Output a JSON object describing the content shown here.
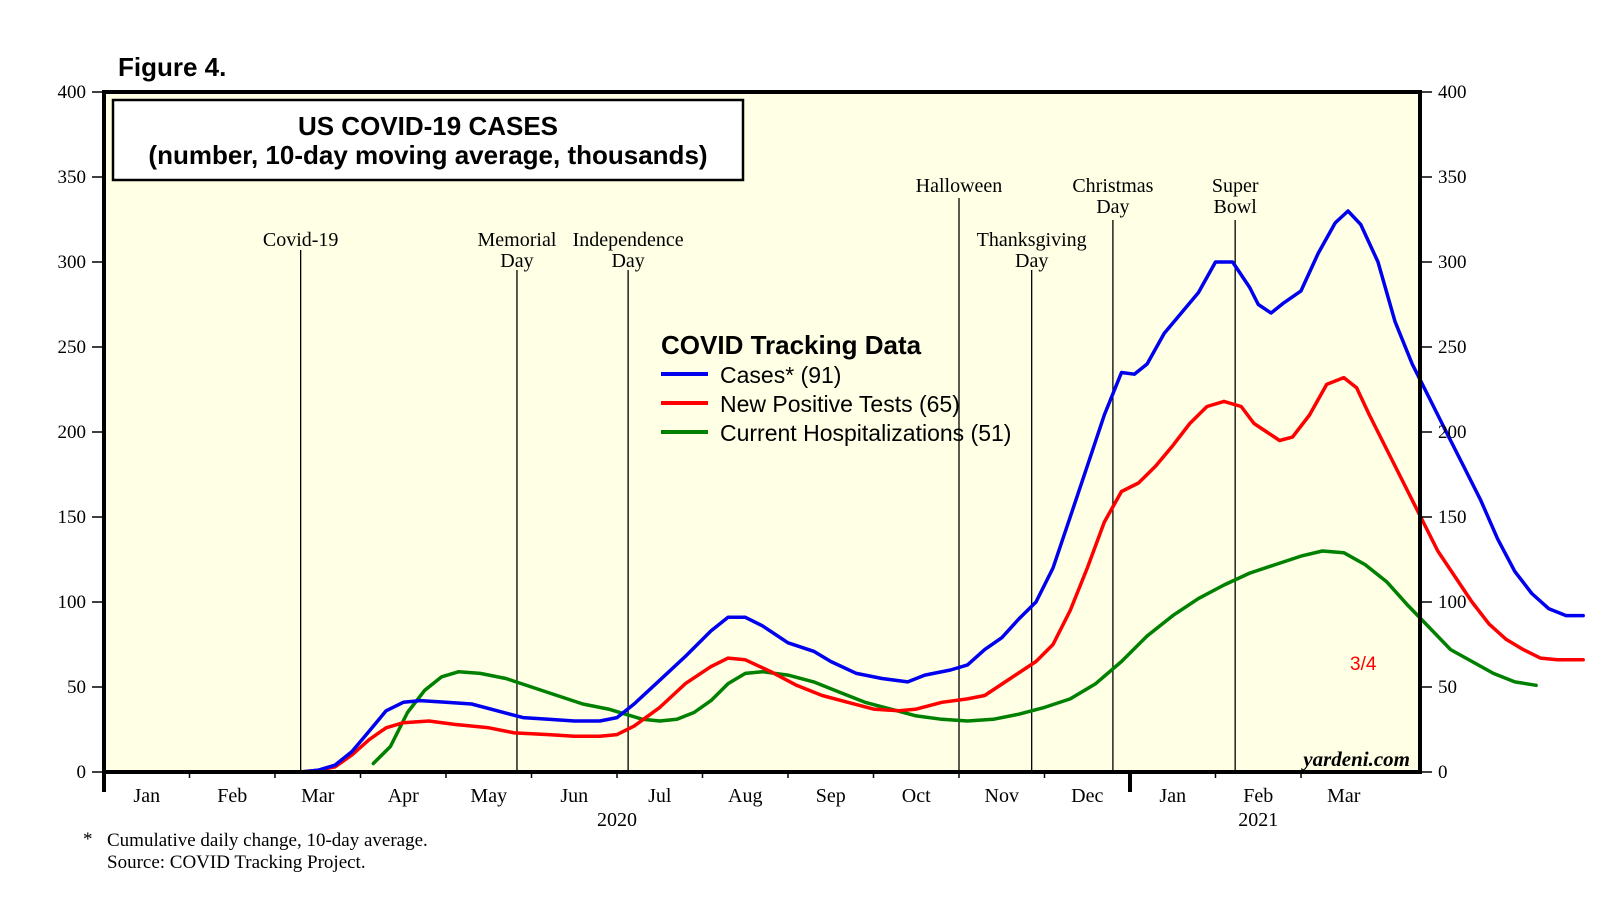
{
  "figure_label": "Figure 4.",
  "chart_data": {
    "type": "line",
    "title_line1": "US COVID-19 CASES",
    "title_line2": "(number, 10-day moving average, thousands)",
    "legend_title": "COVID Tracking Data",
    "ylim": [
      0,
      400
    ],
    "y_ticks": [
      0,
      50,
      100,
      150,
      200,
      250,
      300,
      350,
      400
    ],
    "month_labels": [
      "Jan",
      "Feb",
      "Mar",
      "Apr",
      "May",
      "Jun",
      "Jul",
      "Aug",
      "Sep",
      "Oct",
      "Nov",
      "Dec",
      "Jan",
      "Feb",
      "Mar"
    ],
    "year_labels": [
      {
        "text": "2020",
        "month": 6
      },
      {
        "text": "2021",
        "month": 13.5
      }
    ],
    "events": [
      {
        "line1": "Covid-19",
        "line2": "",
        "month": 2.3
      },
      {
        "line1": "Memorial",
        "line2": "Day",
        "month": 4.83
      },
      {
        "line1": "Independence",
        "line2": "Day",
        "month": 6.13
      },
      {
        "line1": "Halloween",
        "line2": "",
        "month": 10.0
      },
      {
        "line1": "Thanksgiving",
        "line2": "Day",
        "month": 10.85
      },
      {
        "line1": "Christmas",
        "line2": "Day",
        "month": 11.8
      },
      {
        "line1": "Super",
        "line2": "Bowl",
        "month": 13.23
      }
    ],
    "end_label": "3/4",
    "watermark": "yardeni.com",
    "series": [
      {
        "name": "Cases* (91)",
        "color": "#0000ee",
        "points": [
          [
            0.9,
            0
          ],
          [
            2,
            0
          ],
          [
            2.3,
            0
          ],
          [
            2.5,
            1
          ],
          [
            2.7,
            4
          ],
          [
            2.9,
            12
          ],
          [
            3.1,
            24
          ],
          [
            3.3,
            36
          ],
          [
            3.5,
            41
          ],
          [
            3.7,
            42
          ],
          [
            4,
            41
          ],
          [
            4.3,
            40
          ],
          [
            4.6,
            36
          ],
          [
            4.9,
            32
          ],
          [
            5.2,
            31
          ],
          [
            5.5,
            30
          ],
          [
            5.8,
            30
          ],
          [
            6,
            32
          ],
          [
            6.2,
            40
          ],
          [
            6.5,
            54
          ],
          [
            6.8,
            68
          ],
          [
            7.1,
            83
          ],
          [
            7.3,
            91
          ],
          [
            7.5,
            91
          ],
          [
            7.7,
            86
          ],
          [
            8,
            76
          ],
          [
            8.3,
            71
          ],
          [
            8.5,
            65
          ],
          [
            8.8,
            58
          ],
          [
            9.1,
            55
          ],
          [
            9.4,
            53
          ],
          [
            9.6,
            57
          ],
          [
            9.9,
            60
          ],
          [
            10.1,
            63
          ],
          [
            10.3,
            72
          ],
          [
            10.5,
            79
          ],
          [
            10.7,
            90
          ],
          [
            10.9,
            100
          ],
          [
            11.1,
            120
          ],
          [
            11.3,
            150
          ],
          [
            11.5,
            180
          ],
          [
            11.7,
            210
          ],
          [
            11.9,
            235
          ],
          [
            12.05,
            234
          ],
          [
            12.2,
            240
          ],
          [
            12.4,
            258
          ],
          [
            12.6,
            270
          ],
          [
            12.8,
            282
          ],
          [
            13,
            300
          ],
          [
            13.2,
            300
          ],
          [
            13.4,
            285
          ],
          [
            13.5,
            275
          ],
          [
            13.65,
            270
          ],
          [
            13.8,
            276
          ],
          [
            14,
            283
          ],
          [
            14.2,
            305
          ],
          [
            14.4,
            323
          ],
          [
            14.55,
            330
          ],
          [
            14.7,
            322
          ],
          [
            14.9,
            300
          ],
          [
            15.1,
            265
          ],
          [
            15.3,
            240
          ],
          [
            15.5,
            220
          ],
          [
            15.7,
            200
          ],
          [
            15.9,
            180
          ],
          [
            16.1,
            160
          ],
          [
            16.3,
            137
          ],
          [
            16.5,
            118
          ],
          [
            16.7,
            105
          ],
          [
            16.9,
            96
          ],
          [
            17.1,
            92
          ],
          [
            17.3,
            92
          ]
        ]
      },
      {
        "name": "New Positive Tests (65)",
        "color": "#ff0000",
        "points": [
          [
            0.85,
            0
          ],
          [
            2,
            0
          ],
          [
            2.3,
            0
          ],
          [
            2.5,
            1
          ],
          [
            2.7,
            3
          ],
          [
            2.9,
            10
          ],
          [
            3.1,
            19
          ],
          [
            3.3,
            26
          ],
          [
            3.5,
            29
          ],
          [
            3.8,
            30
          ],
          [
            4.1,
            28
          ],
          [
            4.5,
            26
          ],
          [
            4.8,
            23
          ],
          [
            5.2,
            22
          ],
          [
            5.5,
            21
          ],
          [
            5.8,
            21
          ],
          [
            6,
            22
          ],
          [
            6.2,
            27
          ],
          [
            6.5,
            38
          ],
          [
            6.8,
            52
          ],
          [
            7.1,
            62
          ],
          [
            7.3,
            67
          ],
          [
            7.5,
            66
          ],
          [
            7.8,
            59
          ],
          [
            8.1,
            51
          ],
          [
            8.4,
            45
          ],
          [
            8.7,
            41
          ],
          [
            9,
            37
          ],
          [
            9.3,
            36
          ],
          [
            9.5,
            37
          ],
          [
            9.8,
            41
          ],
          [
            10.1,
            43
          ],
          [
            10.3,
            45
          ],
          [
            10.6,
            55
          ],
          [
            10.9,
            65
          ],
          [
            11.1,
            75
          ],
          [
            11.3,
            95
          ],
          [
            11.5,
            120
          ],
          [
            11.7,
            147
          ],
          [
            11.9,
            165
          ],
          [
            12.1,
            170
          ],
          [
            12.3,
            180
          ],
          [
            12.5,
            192
          ],
          [
            12.7,
            205
          ],
          [
            12.9,
            215
          ],
          [
            13.1,
            218
          ],
          [
            13.3,
            215
          ],
          [
            13.45,
            205
          ],
          [
            13.6,
            200
          ],
          [
            13.75,
            195
          ],
          [
            13.9,
            197
          ],
          [
            14.1,
            210
          ],
          [
            14.3,
            228
          ],
          [
            14.5,
            232
          ],
          [
            14.65,
            226
          ],
          [
            14.8,
            210
          ],
          [
            15,
            190
          ],
          [
            15.2,
            170
          ],
          [
            15.4,
            150
          ],
          [
            15.6,
            130
          ],
          [
            15.8,
            115
          ],
          [
            16,
            100
          ],
          [
            16.2,
            87
          ],
          [
            16.4,
            78
          ],
          [
            16.6,
            72
          ],
          [
            16.8,
            67
          ],
          [
            17,
            66
          ],
          [
            17.3,
            66
          ]
        ]
      },
      {
        "name": "Current Hospitalizations (51)",
        "color": "#008000",
        "points": [
          [
            3.15,
            5
          ],
          [
            3.35,
            15
          ],
          [
            3.55,
            35
          ],
          [
            3.75,
            48
          ],
          [
            3.95,
            56
          ],
          [
            4.15,
            59
          ],
          [
            4.4,
            58
          ],
          [
            4.7,
            55
          ],
          [
            5,
            50
          ],
          [
            5.3,
            45
          ],
          [
            5.6,
            40
          ],
          [
            5.9,
            37
          ],
          [
            6.1,
            34
          ],
          [
            6.3,
            31
          ],
          [
            6.5,
            30
          ],
          [
            6.7,
            31
          ],
          [
            6.9,
            35
          ],
          [
            7.1,
            42
          ],
          [
            7.3,
            52
          ],
          [
            7.5,
            58
          ],
          [
            7.7,
            59
          ],
          [
            8,
            57
          ],
          [
            8.3,
            53
          ],
          [
            8.6,
            47
          ],
          [
            8.9,
            41
          ],
          [
            9.2,
            37
          ],
          [
            9.5,
            33
          ],
          [
            9.8,
            31
          ],
          [
            10.1,
            30
          ],
          [
            10.4,
            31
          ],
          [
            10.7,
            34
          ],
          [
            11,
            38
          ],
          [
            11.3,
            43
          ],
          [
            11.6,
            52
          ],
          [
            11.9,
            65
          ],
          [
            12.2,
            80
          ],
          [
            12.5,
            92
          ],
          [
            12.8,
            102
          ],
          [
            13.1,
            110
          ],
          [
            13.4,
            117
          ],
          [
            13.7,
            122
          ],
          [
            14,
            127
          ],
          [
            14.25,
            130
          ],
          [
            14.5,
            129
          ],
          [
            14.75,
            122
          ],
          [
            15,
            112
          ],
          [
            15.25,
            98
          ],
          [
            15.5,
            85
          ],
          [
            15.75,
            72
          ],
          [
            16,
            65
          ],
          [
            16.25,
            58
          ],
          [
            16.5,
            53
          ],
          [
            16.75,
            51
          ]
        ]
      }
    ],
    "footnote_marker": "*",
    "footnote_line1": "Cumulative daily change, 10-day average.",
    "footnote_line2": "Source: COVID Tracking Project."
  }
}
